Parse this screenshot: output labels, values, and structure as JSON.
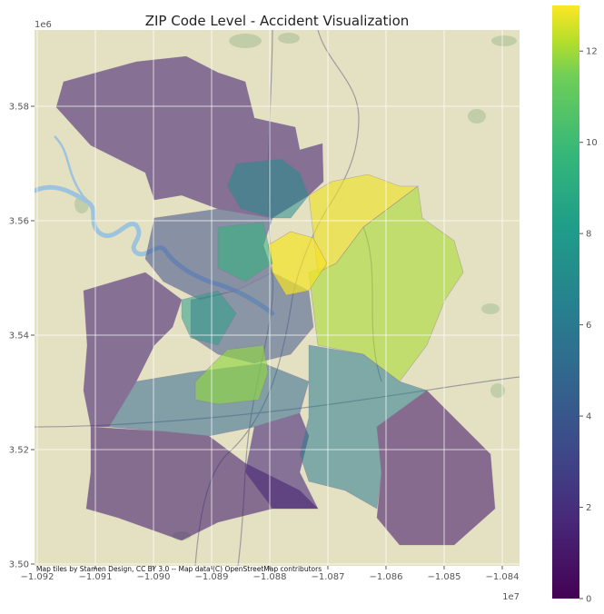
{
  "title": "ZIP Code Level - Accident Visualization",
  "attribution": "Map tiles by Stamen Design, CC BY 3.0 -- Map data (C) OpenStreetMap contributors",
  "x_axis": {
    "offset_label": "1e7",
    "ticks": [
      {
        "value": -1.092,
        "label": "−1.092"
      },
      {
        "value": -1.091,
        "label": "−1.091"
      },
      {
        "value": -1.09,
        "label": "−1.090"
      },
      {
        "value": -1.089,
        "label": "−1.089"
      },
      {
        "value": -1.088,
        "label": "−1.088"
      },
      {
        "value": -1.087,
        "label": "−1.087"
      },
      {
        "value": -1.086,
        "label": "−1.086"
      },
      {
        "value": -1.085,
        "label": "−1.085"
      },
      {
        "value": -1.084,
        "label": "−1.084"
      }
    ]
  },
  "y_axis": {
    "offset_label": "1e6",
    "ticks": [
      {
        "value": 3.5,
        "label": "3.50"
      },
      {
        "value": 3.52,
        "label": "3.52"
      },
      {
        "value": 3.54,
        "label": "3.54"
      },
      {
        "value": 3.56,
        "label": "3.56"
      },
      {
        "value": 3.58,
        "label": "3.58"
      }
    ]
  },
  "colorbar": {
    "ticks": [
      {
        "value": 0,
        "label": "0"
      },
      {
        "value": 2,
        "label": "2"
      },
      {
        "value": 4,
        "label": "4"
      },
      {
        "value": 6,
        "label": "6"
      },
      {
        "value": 8,
        "label": "8"
      },
      {
        "value": 10,
        "label": "10"
      },
      {
        "value": 12,
        "label": "12"
      }
    ],
    "max": 13
  },
  "colors": {
    "low": "#440154",
    "mid": "#21918c",
    "high": "#fde725",
    "basemap": "#e4e1c3",
    "water": "#9ec3dc"
  }
}
